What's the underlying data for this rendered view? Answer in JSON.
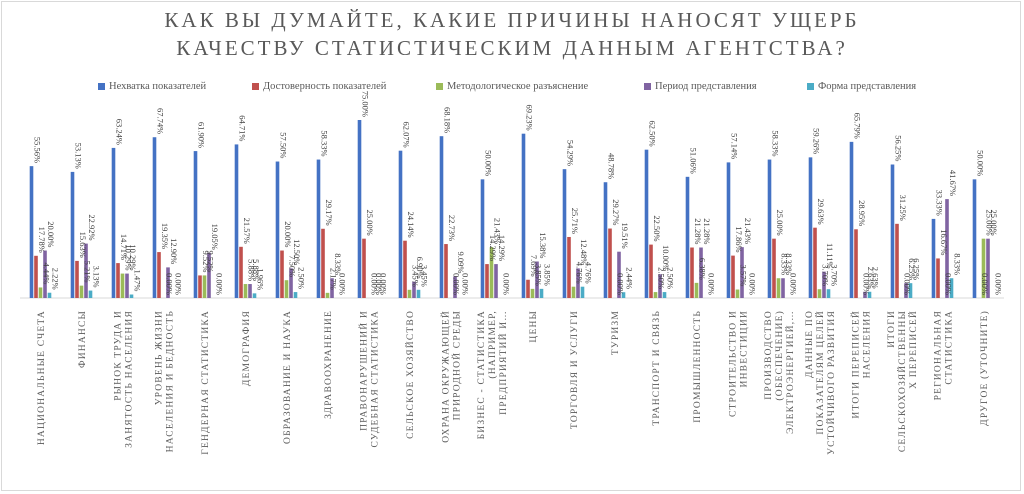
{
  "chart_data": {
    "type": "bar",
    "title_line1": "КАК ВЫ ДУМАЙТЕ, КАКИЕ ПРИЧИНЫ НАНОСЯТ УЩЕРБ",
    "title_line2": "КАЧЕСТВУ СТАТИСТИЧЕСКИМ ДАННЫМ АГЕНТСТВА?",
    "legend_position": "top",
    "grid": false,
    "ylim": [
      0,
      75
    ],
    "series": [
      {
        "name": "Нехватка показателей",
        "color": "#4472c4",
        "values": [
          55.56,
          53.13,
          63.24,
          67.74,
          61.9,
          64.71,
          57.5,
          58.33,
          75.0,
          62.07,
          68.18,
          50.0,
          69.23,
          54.29,
          48.78,
          62.5,
          51.06,
          57.14,
          58.33,
          59.26,
          65.79,
          56.25,
          33.33,
          50.0
        ],
        "labels": [
          "55.56%",
          "53.13%",
          "63.24%",
          "67.74%",
          "61.90%",
          "64.71%",
          "57.50%",
          "58.33%",
          "75.00%",
          "62.07%",
          "68.18%",
          "50.00%",
          "69.23%",
          "54.29%",
          "48.78%",
          "62.50%",
          "51.06%",
          "57.14%",
          "58.33%",
          "59.26%",
          "65.79%",
          "56.25%",
          "33.33%",
          "50.00%"
        ]
      },
      {
        "name": "Достоверность показателей",
        "color": "#c0504d",
        "values": [
          17.78,
          15.63,
          14.71,
          19.35,
          9.52,
          21.57,
          20.0,
          29.17,
          25.0,
          24.14,
          22.73,
          14.29,
          7.69,
          25.71,
          29.27,
          22.5,
          21.28,
          17.86,
          25.0,
          29.63,
          28.95,
          31.25,
          16.67,
          0.0
        ],
        "labels": [
          "17.78%",
          "15.63%",
          "14.71%",
          "19.35%",
          "9.52%",
          "21.57%",
          "20.00%",
          "29.17%",
          "25.00%",
          "24.14%",
          "22.73%",
          "14.29%",
          "7.69%",
          "25.71%",
          "29.27%",
          "22.50%",
          "21.28%",
          "17.86%",
          "25.00%",
          "29.63%",
          "28.95%",
          "31.25%",
          "16.67%",
          "0.00%"
        ]
      },
      {
        "name": "Методологическое разъяснение",
        "color": "#9bbb59",
        "values": [
          4.44,
          5.21,
          10.29,
          0.0,
          9.52,
          5.88,
          7.5,
          2.17,
          0.0,
          3.45,
          0.0,
          21.43,
          3.85,
          4.76,
          0.0,
          2.5,
          6.38,
          3.57,
          8.33,
          3.7,
          0.0,
          0.0,
          0.0,
          25.0
        ],
        "labels": [
          "4.44%",
          "5.21%",
          "10.29%",
          "0.00%",
          "9.52%",
          "5.88%",
          "7.50%",
          "2.17%",
          "0.00%",
          "3.45%",
          "0.00%",
          "21.43%",
          "3.85%",
          "4.76%",
          "0.00%",
          "2.50%",
          "6.38%",
          "3.57%",
          "8.33%",
          "3.70%",
          "0.00%",
          "0.00%",
          "0.00%",
          "25.00%"
        ]
      },
      {
        "name": "Период представления",
        "color": "#8064a2",
        "values": [
          20.0,
          22.92,
          10.29,
          12.9,
          19.05,
          5.88,
          12.5,
          8.33,
          0.0,
          6.9,
          9.09,
          14.29,
          15.38,
          12.48,
          19.51,
          10.0,
          21.28,
          21.43,
          8.33,
          11.11,
          2.63,
          6.25,
          41.67,
          25.0
        ],
        "labels": [
          "20.00%",
          "22.92%",
          "10.29%",
          "12.90%",
          "19.05%",
          "5.88%",
          "12.50%",
          "8.33%",
          "0.00%",
          "6.90%",
          "9.09%",
          "14.29%",
          "15.38%",
          "12.48%",
          "19.51%",
          "10.00%",
          "21.28%",
          "21.43%",
          "8.33%",
          "11.11%",
          "2.63%",
          "6.25%",
          "41.67%",
          "25.00%"
        ]
      },
      {
        "name": "Форма представления",
        "color": "#4bacc6",
        "values": [
          2.22,
          3.13,
          1.47,
          0.0,
          0.0,
          1.96,
          2.5,
          0.0,
          0.0,
          3.45,
          0.0,
          0.0,
          3.85,
          4.76,
          2.44,
          2.5,
          0.0,
          0.0,
          0.0,
          3.7,
          2.63,
          6.25,
          8.33,
          0.0
        ],
        "labels": [
          "2.22%",
          "3.13%",
          "1.47%",
          "0.00%",
          "0.00%",
          "1.96%",
          "2.50%",
          "0.00%",
          "0.00%",
          "3.45%",
          "0.00%",
          "0.00%",
          "3.85%",
          "4.76%",
          "2.44%",
          "2.50%",
          "0.00%",
          "0.00%",
          "0.00%",
          "3.70%",
          "2.63%",
          "6.25%",
          "8.33%",
          "0.00%"
        ]
      }
    ],
    "categories": [
      [
        "НАЦИОНАЛЬНЫЕ СЧЕТА"
      ],
      [
        "ФИНАНСЫ"
      ],
      [
        "РЫНОК ТРУДА И",
        "ЗАНЯТОСТЬ НАСЕЛЕНИЯ"
      ],
      [
        "УРОВЕНЬ ЖИЗНИ",
        "НАСЕЛЕНИЯ И БЕДНОСТЬ"
      ],
      [
        "ГЕНДЕРНАЯ СТАТИСТИКА"
      ],
      [
        "ДЕМОГРАФИЯ"
      ],
      [
        "ОБРАЗОВАНИЕ И НАУКА"
      ],
      [
        "ЗДРАВООХРАНЕНИЕ"
      ],
      [
        "ПРАВОНАРУШЕНИЙ И",
        "СУДЕБНАЯ СТАТИСТИКА"
      ],
      [
        "СЕЛЬСКОЕ ХОЗЯЙСТВО"
      ],
      [
        "ОХРАНА ОКРУЖАЮЩЕЙ",
        "ПРИРОДНОЙ СРЕДЫ"
      ],
      [
        "БИЗНЕС - СТАТИСТИКА",
        "(НАПРИМЕР,",
        "ПРЕДПРИЯТИЙ И…"
      ],
      [
        "ЦЕНЫ"
      ],
      [
        "ТОРГОВЛЯ И УСЛУГИ"
      ],
      [
        "ТУРИЗМ"
      ],
      [
        "ТРАНСПОРТ И СВЯЗЬ"
      ],
      [
        "ПРОМЫШЛЕННОСТЬ"
      ],
      [
        "СТРОИТЕЛЬСТВО И",
        "ИНВЕСТИЦИИ"
      ],
      [
        "ПРОИЗВОДСТВО",
        "(ОБЕСПЕЧЕНИЕ)",
        "ЭЛЕКТРОЭНЕРГИЕЙ,…"
      ],
      [
        "ДАННЫЕ ПО",
        "ПОКАЗАТЕЛЯМ ЦЕЛЕЙ",
        "УСТОЙЧИВОГО РАЗВИТИЯ"
      ],
      [
        "ИТОГИ ПЕРЕПИСЕЙ",
        "НАСЕЛЕНИЯ"
      ],
      [
        "ИТОГИ",
        "СЕЛЬСКОХОЗЯЙСТВЕННЫ",
        "Х ПЕРЕПИСЕЙ"
      ],
      [
        "РЕГИОНАЛЬНАЯ",
        "СТАТИСТИКА"
      ],
      [
        "ДРУГОЕ (УТОЧНИТЕ)"
      ]
    ]
  }
}
